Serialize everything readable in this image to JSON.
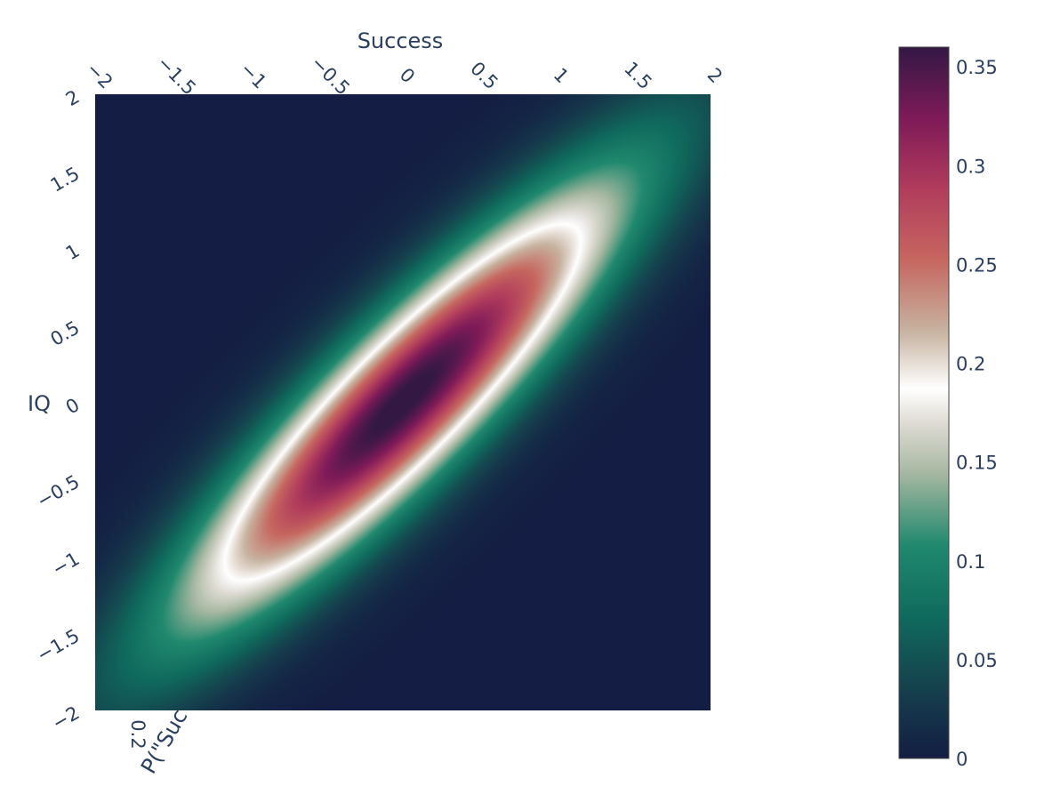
{
  "chart_data": {
    "type": "heatmap",
    "title": "",
    "xlabel": "Success",
    "ylabel": "IQ",
    "xlim": [
      -2,
      2
    ],
    "ylim": [
      -2,
      2
    ],
    "x_ticks": [
      {
        "value": -2,
        "label": "−2"
      },
      {
        "value": -1.5,
        "label": "−1.5"
      },
      {
        "value": -1,
        "label": "−1"
      },
      {
        "value": -0.5,
        "label": "−0.5"
      },
      {
        "value": 0,
        "label": "0"
      },
      {
        "value": 0.5,
        "label": "0.5"
      },
      {
        "value": 1,
        "label": "1"
      },
      {
        "value": 1.5,
        "label": "1.5"
      },
      {
        "value": 2,
        "label": "2"
      }
    ],
    "y_ticks": [
      {
        "value": 2,
        "label": "2"
      },
      {
        "value": 1.5,
        "label": "1.5"
      },
      {
        "value": 1,
        "label": "1"
      },
      {
        "value": 0.5,
        "label": "0.5"
      },
      {
        "value": 0,
        "label": "0"
      },
      {
        "value": -0.5,
        "label": "−0.5"
      },
      {
        "value": -1,
        "label": "−1"
      },
      {
        "value": -1.5,
        "label": "−1.5"
      },
      {
        "value": -2,
        "label": "−2"
      }
    ],
    "z_axis_fragments": [
      "0.2",
      "P(\"Suc"
    ],
    "distribution": {
      "kind": "bivariate normal",
      "mean": [
        0,
        0
      ],
      "sd_x": 1,
      "sd_y": 1,
      "correlation": 0.9,
      "peak": 0.365
    },
    "colorscale": {
      "range": [
        0,
        0.36
      ],
      "ticks": [
        {
          "value": 0,
          "label": "0"
        },
        {
          "value": 0.05,
          "label": "0.05"
        },
        {
          "value": 0.1,
          "label": "0.1"
        },
        {
          "value": 0.15,
          "label": "0.15"
        },
        {
          "value": 0.2,
          "label": "0.2"
        },
        {
          "value": 0.25,
          "label": "0.25"
        },
        {
          "value": 0.3,
          "label": "0.3"
        },
        {
          "value": 0.35,
          "label": "0.35"
        }
      ],
      "stops": [
        [
          0.0,
          "#141d43"
        ],
        [
          0.1,
          "#15414d"
        ],
        [
          0.2,
          "#0f6b5d"
        ],
        [
          0.3,
          "#20896e"
        ],
        [
          0.4,
          "#a5b7a0"
        ],
        [
          0.47,
          "#dedbd3"
        ],
        [
          0.52,
          "#ffffff"
        ],
        [
          0.6,
          "#c7b3a0"
        ],
        [
          0.7,
          "#c6675f"
        ],
        [
          0.8,
          "#b13c5c"
        ],
        [
          0.9,
          "#7e1a58"
        ],
        [
          1.0,
          "#331844"
        ]
      ]
    }
  }
}
